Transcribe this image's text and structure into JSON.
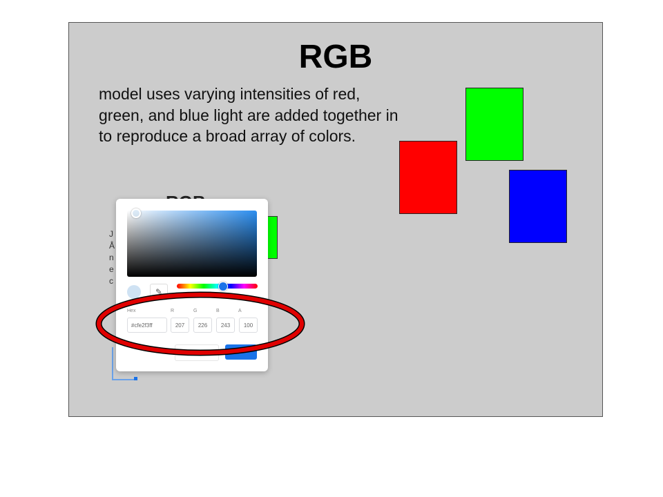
{
  "slide": {
    "title": "RGB",
    "body": "model uses varying intensities of red, green, and blue light are added together in to reproduce a broad array of colors."
  },
  "thumbnail": {
    "title": "RGB",
    "letters": "J\nÅ\nn\ne\nc"
  },
  "swatches": [
    {
      "name": "red",
      "color": "#ff0000"
    },
    {
      "name": "green",
      "color": "#00ff00"
    },
    {
      "name": "blue",
      "color": "#0000ff"
    }
  ],
  "picker": {
    "selected_color": "#cfe2f3",
    "labels": {
      "hex": "Hex",
      "r": "R",
      "g": "G",
      "b": "B",
      "a": "A"
    },
    "values": {
      "hex": "#cfe2f3ff",
      "r": "207",
      "g": "226",
      "b": "243",
      "a": "100"
    },
    "icons": {
      "eyedropper": "eyedropper-icon"
    }
  },
  "annotation": {
    "color": "#e00000",
    "shape": "ellipse"
  }
}
